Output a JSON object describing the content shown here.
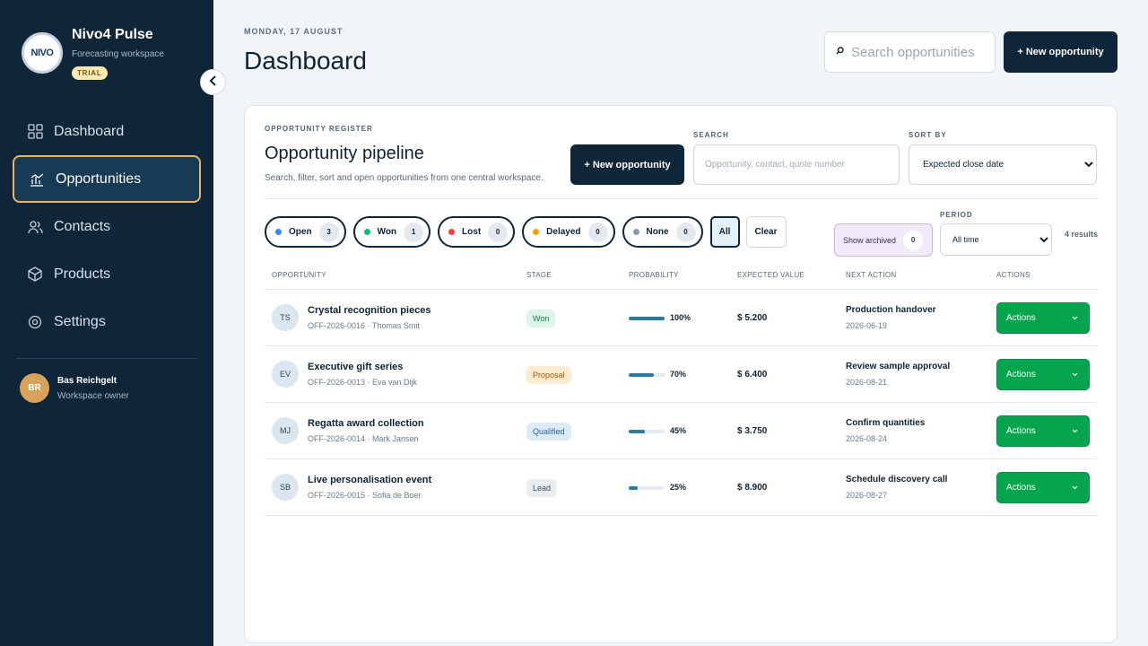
{
  "brand": {
    "name": "Nivo4 Pulse",
    "subtitle": "Forecasting workspace",
    "badge": "TRIAL",
    "logo_text": "NIVO"
  },
  "nav": [
    {
      "label": "Dashboard",
      "icon": "grid-icon"
    },
    {
      "label": "Opportunities",
      "icon": "chart-icon",
      "active": true
    },
    {
      "label": "Contacts",
      "icon": "users-icon"
    },
    {
      "label": "Products",
      "icon": "box-icon"
    },
    {
      "label": "Settings",
      "icon": "gear-icon"
    }
  ],
  "user": {
    "initials": "BR",
    "name": "Bas Reichgelt",
    "role": "Workspace owner"
  },
  "header": {
    "date": "MONDAY, 17 AUGUST",
    "title": "Dashboard",
    "search_placeholder": "Search opportunities",
    "new_button": "+ New opportunity"
  },
  "panel": {
    "kicker": "OPPORTUNITY REGISTER",
    "title": "Opportunity pipeline",
    "subtitle": "Search, filter, sort and open opportunities from one central workspace.",
    "new_button": "+ New opportunity",
    "search_label": "SEARCH",
    "search_placeholder": "Opportunity, contact, quote number",
    "sort_label": "SORT BY",
    "sort_value": "Expected close date",
    "period_label": "PERIOD",
    "period_value": "All time",
    "archived_label": "Show archived",
    "archived_count": "0",
    "results": "4 results",
    "all_label": "All",
    "clear_label": "Clear"
  },
  "filters": [
    {
      "label": "Open",
      "count": "3",
      "color": "#3b82f6"
    },
    {
      "label": "Won",
      "count": "1",
      "color": "#10b981"
    },
    {
      "label": "Lost",
      "count": "0",
      "color": "#ef4444"
    },
    {
      "label": "Delayed",
      "count": "0",
      "color": "#f59e0b"
    },
    {
      "label": "None",
      "count": "0",
      "color": "#8b9aa8"
    }
  ],
  "columns": [
    "OPPORTUNITY",
    "STAGE",
    "PROBABILITY",
    "EXPECTED VALUE",
    "NEXT ACTION",
    "ACTIONS"
  ],
  "rows": [
    {
      "initials": "TS",
      "name": "Crystal recognition pieces",
      "meta": "OFF-2026-0016 · Thomas Smit",
      "stage": "Won",
      "stage_bg": "#dcf5e8",
      "stage_fg": "#16794a",
      "probability": "100%",
      "probability_value": 100,
      "value": "$ 5.200",
      "next_action": "Production handover",
      "next_date": "2026-06-19",
      "actions": "Actions"
    },
    {
      "initials": "EV",
      "name": "Executive gift series",
      "meta": "OFF-2026-0013 · Eva van Dijk",
      "stage": "Proposal",
      "stage_bg": "#fdebcf",
      "stage_fg": "#9a5a10",
      "probability": "70%",
      "probability_value": 70,
      "value": "$ 6.400",
      "next_action": "Review sample approval",
      "next_date": "2026-08-21",
      "actions": "Actions"
    },
    {
      "initials": "MJ",
      "name": "Regatta award collection",
      "meta": "OFF-2026-0014 · Mark Jansen",
      "stage": "Qualified",
      "stage_bg": "#dcebf8",
      "stage_fg": "#2563a3",
      "probability": "45%",
      "probability_value": 45,
      "value": "$ 3.750",
      "next_action": "Confirm quantities",
      "next_date": "2026-08-24",
      "actions": "Actions"
    },
    {
      "initials": "SB",
      "name": "Live personalisation event",
      "meta": "OFF-2026-0015 · Sofia de Boer",
      "stage": "Lead",
      "stage_bg": "#e8edf1",
      "stage_fg": "#3b4b58",
      "probability": "25%",
      "probability_value": 25,
      "value": "$ 8.900",
      "next_action": "Schedule discovery call",
      "next_date": "2026-08-27",
      "actions": "Actions"
    }
  ]
}
